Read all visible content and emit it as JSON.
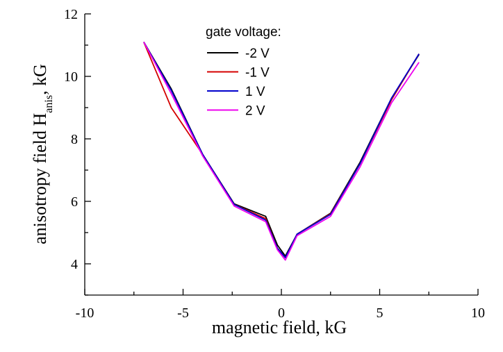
{
  "chart_data": {
    "type": "line",
    "xlabel": "magnetic field, kG",
    "ylabel": "anisotropy field H",
    "ylabel_subscript": "anis",
    "ylabel_suffix": ", kG",
    "xlim": [
      -10,
      10
    ],
    "ylim": [
      3,
      12
    ],
    "xticks": [
      -10,
      -5,
      0,
      5,
      10
    ],
    "yticks": [
      4,
      6,
      8,
      10,
      12
    ],
    "xtick_labels": [
      "-10",
      "-5",
      "0",
      "5",
      "10"
    ],
    "ytick_labels": [
      "4",
      "6",
      "8",
      "10",
      "12"
    ],
    "grid": false,
    "legend": {
      "title": "gate voltage:",
      "placement": "top-center"
    },
    "series": [
      {
        "name": "-2 V",
        "color": "#000000",
        "x": [
          -7,
          -5.6,
          -4,
          -2.4,
          -0.8,
          -0.2,
          0.2,
          0.8,
          2.5,
          4,
          5.6,
          7
        ],
        "y": [
          11.1,
          9.6,
          7.5,
          5.92,
          5.52,
          4.6,
          4.25,
          4.95,
          5.62,
          7.25,
          9.3,
          10.7
        ]
      },
      {
        "name": "-1 V",
        "color": "#d40000",
        "x": [
          -7,
          -5.6,
          -4,
          -2.4,
          -0.8,
          -0.2,
          0.2,
          0.8,
          2.5,
          4,
          5.6,
          7
        ],
        "y": [
          11.1,
          9.0,
          7.5,
          5.9,
          5.45,
          4.5,
          4.2,
          4.95,
          5.6,
          7.2,
          9.25,
          10.72
        ]
      },
      {
        "name": "1 V",
        "color": "#0000cc",
        "x": [
          -7,
          -5.6,
          -4,
          -2.4,
          -0.8,
          -0.2,
          0.2,
          0.8,
          2.5,
          4,
          5.6,
          7
        ],
        "y": [
          11.1,
          9.55,
          7.5,
          5.9,
          5.4,
          4.5,
          4.2,
          4.95,
          5.58,
          7.2,
          9.3,
          10.72
        ]
      },
      {
        "name": "2 V",
        "color": "#ee00ee",
        "x": [
          -7,
          -5.6,
          -4,
          -2.4,
          -0.8,
          -0.2,
          0.2,
          0.8,
          2.5,
          4,
          5.6,
          7
        ],
        "y": [
          11.1,
          9.45,
          7.45,
          5.85,
          5.35,
          4.45,
          4.12,
          4.9,
          5.52,
          7.1,
          9.15,
          10.45
        ]
      }
    ]
  }
}
